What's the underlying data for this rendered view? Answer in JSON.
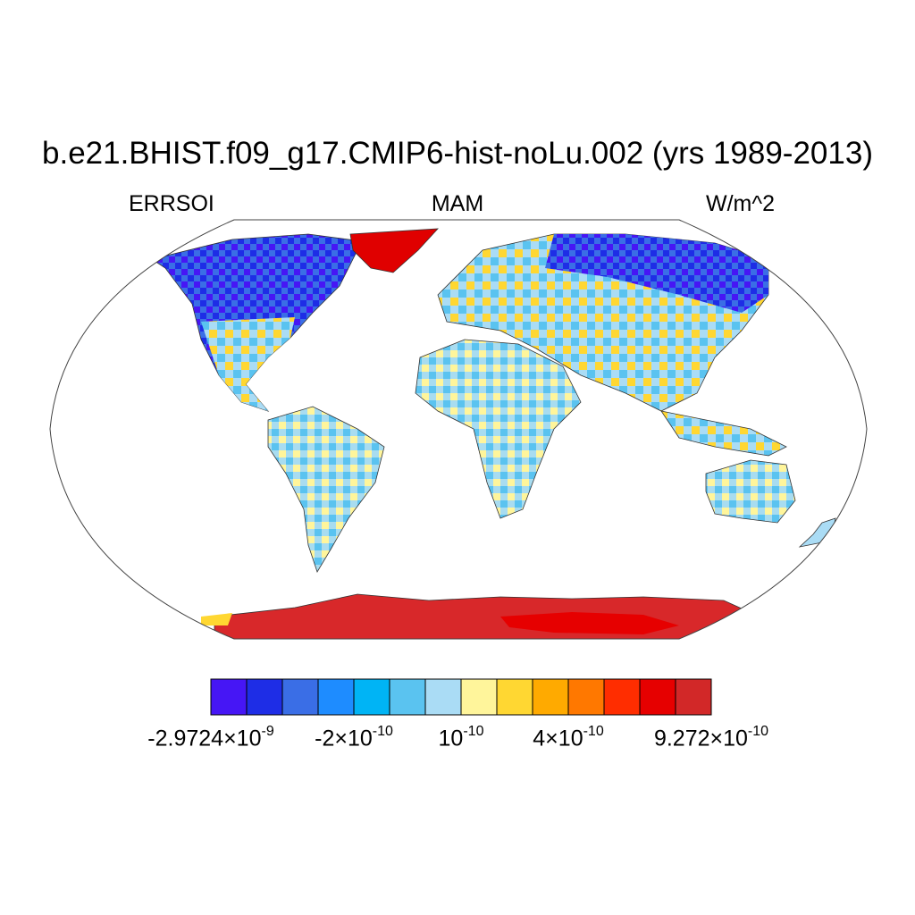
{
  "title": "b.e21.BHIST.f09_g17.CMIP6-hist-noLu.002 (yrs 1989-2013)",
  "subtitle_left": "ERRSOI",
  "subtitle_center": "MAM",
  "subtitle_right": "W/m^2",
  "map": {
    "projection": "robinson",
    "coastlines": true,
    "regions": [
      {
        "name": "Greenland",
        "color": "#e00000"
      },
      {
        "name": "Antarctica",
        "color": "#d8282a"
      },
      {
        "name": "Northern Canada",
        "color": "#3a20f0"
      },
      {
        "name": "Northern Siberia",
        "color": "#3a20f0"
      },
      {
        "name": "Africa",
        "color": "#a8dcf0"
      },
      {
        "name": "South America",
        "color": "#a8dcf0"
      },
      {
        "name": "Australia",
        "color": "#a8dcf0"
      }
    ]
  },
  "colorbar": {
    "colors": [
      "#4616f5",
      "#1e2de6",
      "#3a6ee6",
      "#1e8cff",
      "#00b4f5",
      "#5ac3f0",
      "#aadcf5",
      "#fff59b",
      "#ffd732",
      "#ffaa00",
      "#ff7800",
      "#ff2d00",
      "#e60000",
      "#d22828"
    ],
    "tick_labels": [
      {
        "mantissa": "-2.9724×10",
        "exponent": "-9"
      },
      {
        "mantissa": "-2×10",
        "exponent": "-10"
      },
      {
        "mantissa": "10",
        "exponent": "-10"
      },
      {
        "mantissa": "4×10",
        "exponent": "-10"
      },
      {
        "mantissa": "9.272×10",
        "exponent": "-10"
      }
    ]
  }
}
